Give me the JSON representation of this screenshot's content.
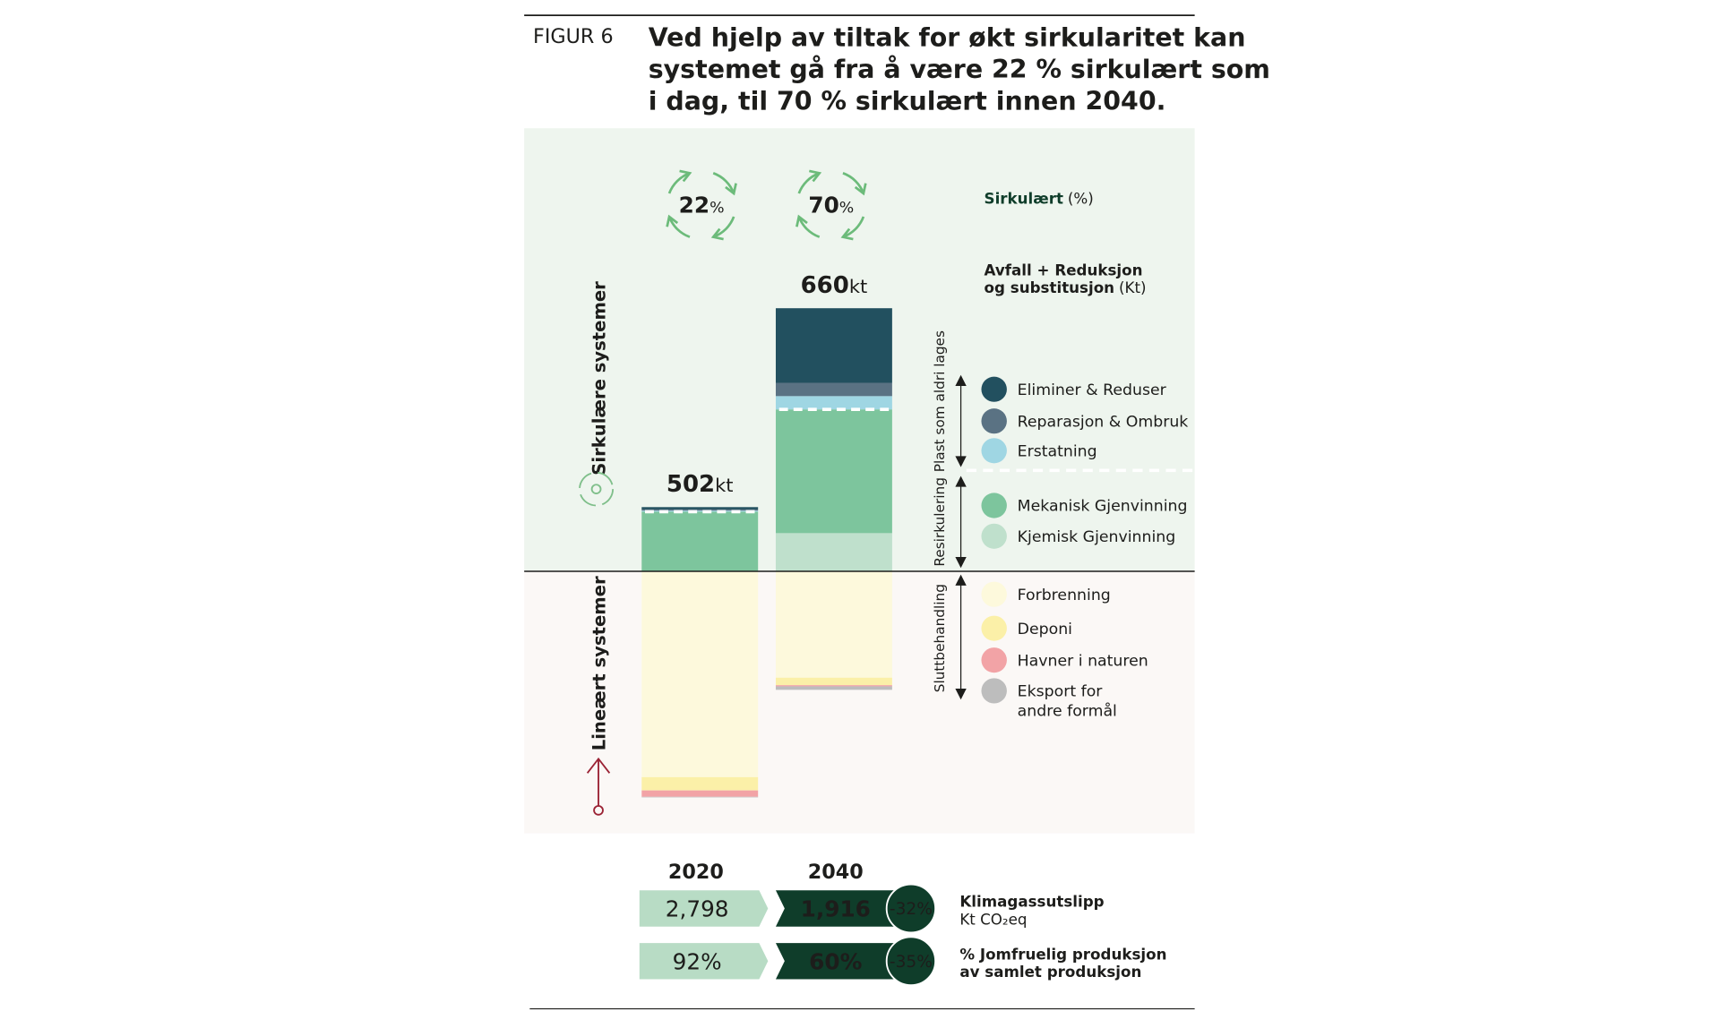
{
  "chart_data": {
    "type": "bar",
    "figure_label": "FIGUR 6",
    "title_lines": [
      "Ved hjelp av tiltak for økt sirkularitet kan",
      "systemet gå fra å være 22 % sirkulært som",
      "i dag, til 70 % sirkulært innen 2040."
    ],
    "categories": [
      "2020",
      "2040"
    ],
    "totals": [
      502,
      660
    ],
    "total_unit": "kt",
    "circular_percent": [
      22,
      70
    ],
    "percent_sign": "%",
    "circular_label": "Sirkulært",
    "circular_label_unit": "(%)",
    "legend_title_lines": [
      "Avfall + Reduksjon",
      "og substitusjon"
    ],
    "legend_title_unit": "(Kt)",
    "sections": [
      {
        "label": "Sirkulære systemer",
        "color": "#7fbf8a",
        "groups": [
          {
            "label": "Plast som aldri lages",
            "series": [
              {
                "name": "Eliminer & Reduser",
                "color": "#22505f",
                "values": [
                  4,
                  129
                ]
              },
              {
                "name": "Reparasjon & Ombruk",
                "color": "#5a7283",
                "values": [
                  2,
                  23
                ]
              },
              {
                "name": "Erstatning",
                "color": "#9fd6e3",
                "values": [
                  2,
                  23
                ]
              }
            ]
          },
          {
            "label": "Resirkulering",
            "series": [
              {
                "name": "Mekanisk Gjenvinning",
                "color": "#7dc59d",
                "values": [
                  103,
                  214
                ]
              },
              {
                "name": "Kjemisk Gjenvinning",
                "color": "#bfe0cc",
                "values": [
                  0,
                  66
                ]
              }
            ]
          }
        ]
      },
      {
        "label": "Lineært systemer",
        "color": "#9b2335",
        "groups": [
          {
            "label": "Sluttbehandling",
            "series": [
              {
                "name": "Forbrenning",
                "color": "#fdf9dc",
                "values": [
                  356,
                  184
                ]
              },
              {
                "name": "Deponi",
                "color": "#fbf0a8",
                "values": [
                  23,
                  13
                ]
              },
              {
                "name": "Havner i naturen",
                "color": "#f2a3a6",
                "values": [
                  11,
                  2
                ]
              },
              {
                "name": "Eksport for andre formål",
                "color": "#bdbdbd",
                "values": [
                  1,
                  6
                ]
              }
            ]
          }
        ]
      }
    ],
    "metrics": [
      {
        "label_lines": [
          "Klimagassutslipp",
          "Kt CO₂eq"
        ],
        "values": [
          2798,
          1916
        ],
        "value_labels": [
          "2,798",
          "1,916"
        ],
        "change": -32,
        "change_label": "-32%"
      },
      {
        "label_lines": [
          "% Jomfruelig produksjon",
          "av samlet produksjon"
        ],
        "values": [
          92,
          60
        ],
        "value_labels": [
          "92%",
          "60%"
        ],
        "change": -35,
        "change_label": "-35%"
      }
    ]
  }
}
